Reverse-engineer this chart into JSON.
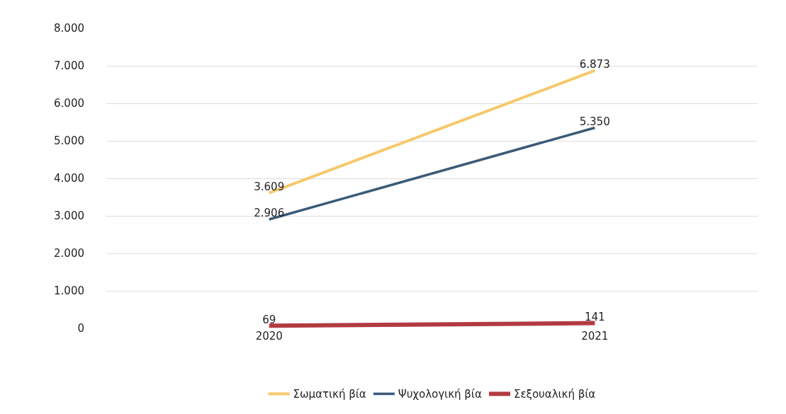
{
  "chart_data": {
    "type": "line",
    "categories": [
      "2020",
      "2021"
    ],
    "series": [
      {
        "name": "Σωματική βία",
        "color": "#f5c96a",
        "values": [
          3609,
          6873
        ],
        "value_labels": [
          "3.609",
          "6.873"
        ]
      },
      {
        "name": "Ψυχολογική βία",
        "color": "#3a5a78",
        "values": [
          2906,
          5350
        ],
        "value_labels": [
          "2.906",
          "5.350"
        ]
      },
      {
        "name": "Σεξουαλική βία",
        "color": "#b23a40",
        "values": [
          69,
          141
        ],
        "value_labels": [
          "69",
          "141"
        ]
      }
    ],
    "ylim": [
      0,
      8000
    ],
    "yticks": [
      {
        "value": 0,
        "label": "0"
      },
      {
        "value": 1000,
        "label": "1.000"
      },
      {
        "value": 2000,
        "label": "2.000"
      },
      {
        "value": 3000,
        "label": "3.000"
      },
      {
        "value": 4000,
        "label": "4.000"
      },
      {
        "value": 5000,
        "label": "5.000"
      },
      {
        "value": 6000,
        "label": "6.000"
      },
      {
        "value": 7000,
        "label": "7.000"
      },
      {
        "value": 8000,
        "label": "8.000"
      }
    ],
    "grid": "y",
    "legend": "bottom",
    "marker": "none",
    "line_style": "solid"
  }
}
